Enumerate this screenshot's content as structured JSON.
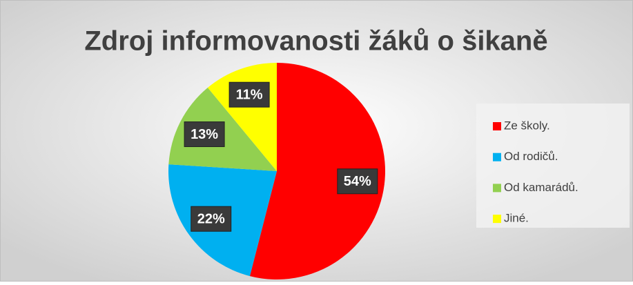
{
  "chart_data": {
    "type": "pie",
    "title": "Zdroj informovanosti žáků o šikaně",
    "categories": [
      "Ze školy.",
      "Od rodičů.",
      "Od kamarádů.",
      "Jiné."
    ],
    "values": [
      54,
      22,
      13,
      11
    ],
    "value_labels": [
      "54%",
      "22%",
      "13%",
      "11%"
    ],
    "colors": [
      "#ff0000",
      "#00b0f0",
      "#92d050",
      "#ffff00"
    ],
    "legend": "right"
  }
}
